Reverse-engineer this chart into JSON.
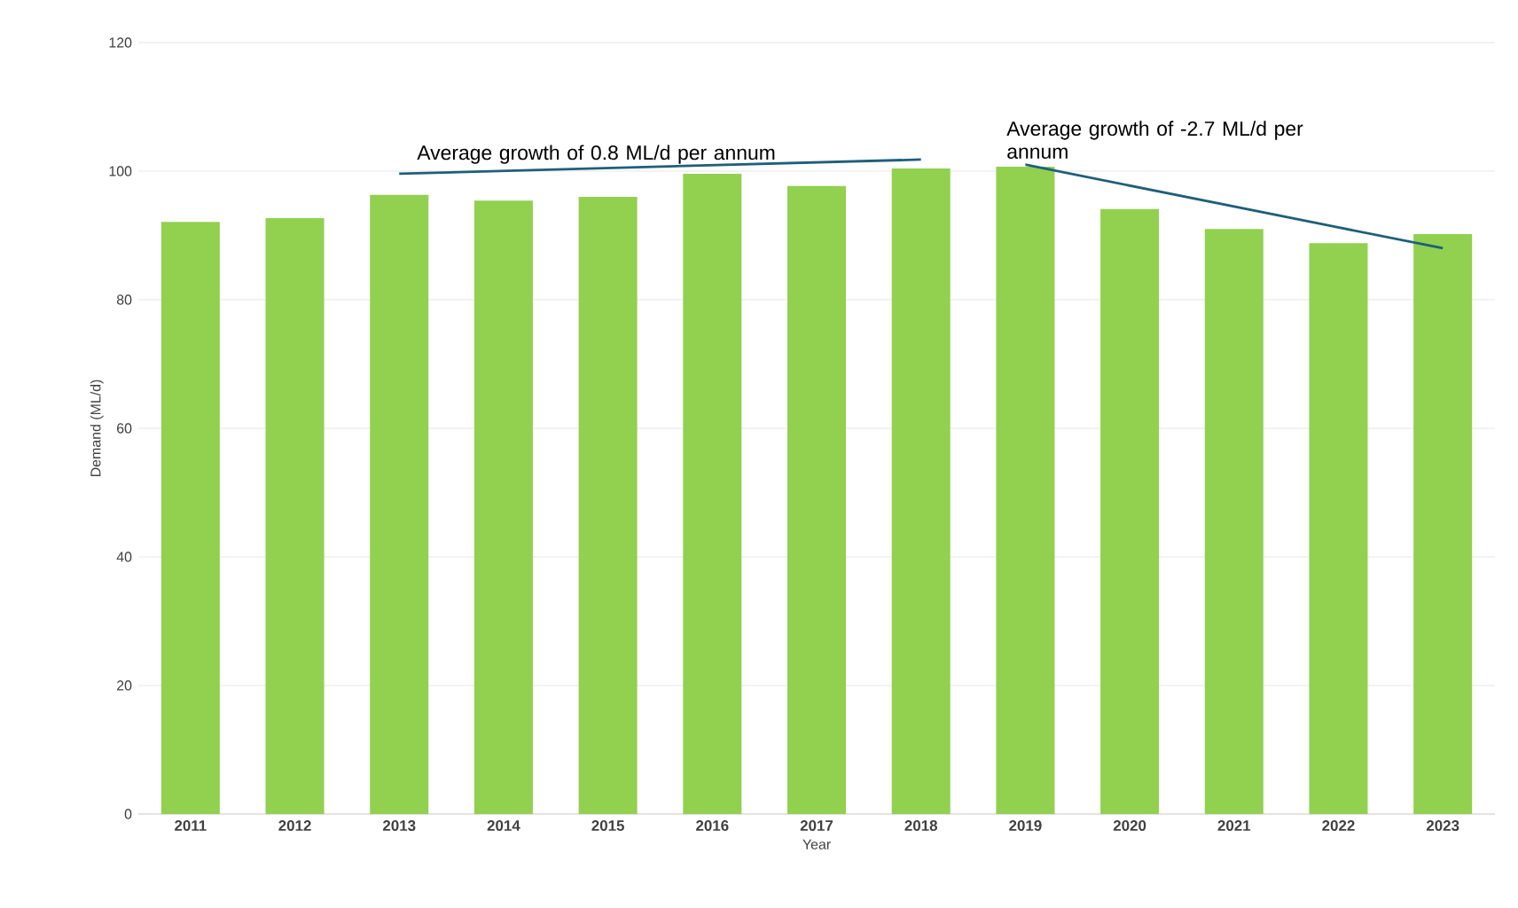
{
  "chart_data": {
    "type": "bar",
    "xlabel": "Year",
    "ylabel": "Demand (ML/d)",
    "x": [
      2011,
      2012,
      2013,
      2014,
      2015,
      2016,
      2017,
      2018,
      2019,
      2020,
      2021,
      2022,
      2023
    ],
    "series": [
      {
        "color": "#92d050",
        "values": [
          92.1,
          92.7,
          96.3,
          95.4,
          96.0,
          99.6,
          97.7,
          100.4,
          100.7,
          94.1,
          91.0,
          88.8,
          90.2
        ]
      },
      {
        "type": "line",
        "color": "#1f5f7a",
        "x": [
          2013,
          2018
        ],
        "values": [
          99.6,
          101.8
        ]
      },
      {
        "type": "line",
        "color": "#1f5f7a",
        "x": [
          2019,
          2023
        ],
        "values": [
          101.0,
          88.0
        ]
      }
    ],
    "annotations": [
      "Average growth of 0.8 ML/d per annum",
      "Average growth of -2.7 ML/d per annum"
    ],
    "xlim": [
      2010.5,
      2023.5
    ],
    "xticks": [
      2011,
      2012,
      2013,
      2014,
      2015,
      2016,
      2017,
      2018,
      2019,
      2020,
      2021,
      2022,
      2023
    ],
    "ylim": [
      0,
      120
    ],
    "yticks": [
      0,
      20,
      40,
      60,
      80,
      100,
      120
    ],
    "grid": "y"
  }
}
